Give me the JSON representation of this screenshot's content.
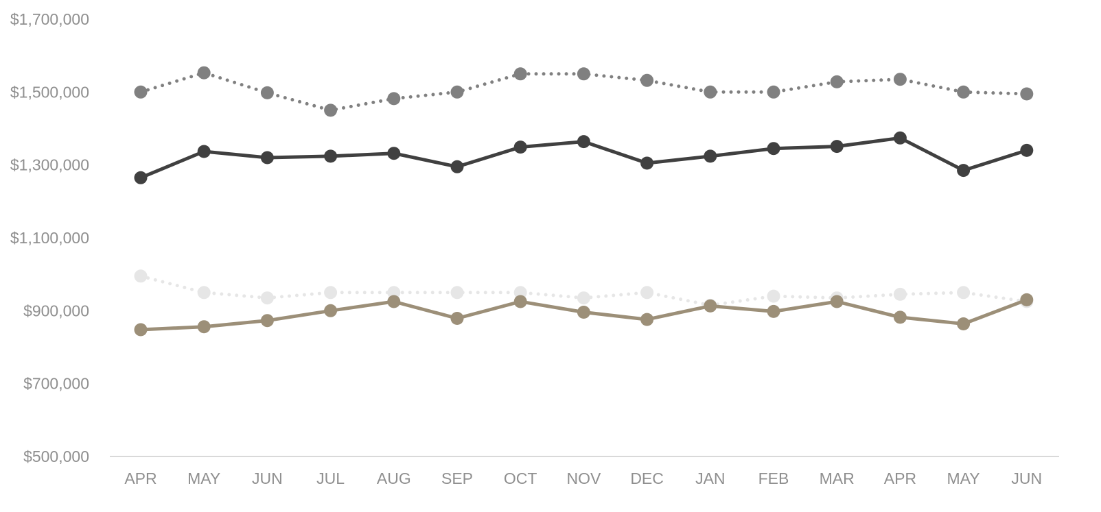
{
  "chart_data": {
    "type": "line",
    "categories": [
      "APR",
      "MAY",
      "JUN",
      "JUL",
      "AUG",
      "SEP",
      "OCT",
      "NOV",
      "DEC",
      "JAN",
      "FEB",
      "MAR",
      "APR",
      "MAY",
      "JUN"
    ],
    "ylim": [
      500000,
      1700000
    ],
    "yticks": [
      500000,
      700000,
      900000,
      1100000,
      1300000,
      1500000,
      1700000
    ],
    "ytick_labels": [
      "$500,000",
      "$700,000",
      "$900,000",
      "$1,100,000",
      "$1,300,000",
      "$1,500,000",
      "$1,700,000"
    ],
    "grid": false,
    "legend": "none",
    "series": [
      {
        "values": [
          1500000,
          1553000,
          1498000,
          1450000,
          1482000,
          1500000,
          1550000,
          1550000,
          1532000,
          1500000,
          1500000,
          1528000,
          1535000,
          1500000,
          1495000
        ],
        "color": "#808080",
        "line_style": "dotted"
      },
      {
        "values": [
          1265000,
          1337000,
          1320000,
          1324000,
          1332000,
          1295000,
          1349000,
          1364000,
          1305000,
          1324000,
          1345000,
          1351000,
          1374000,
          1285000,
          1340000
        ],
        "color": "#404040",
        "line_style": "solid"
      },
      {
        "values": [
          995000,
          950000,
          935000,
          950000,
          950000,
          950000,
          950000,
          935000,
          950000,
          915000,
          940000,
          935000,
          945000,
          950000,
          925000
        ],
        "color": "#e6e6e6",
        "line_style": "dotted"
      },
      {
        "values": [
          848000,
          856000,
          873000,
          900000,
          925000,
          879000,
          925000,
          896000,
          876000,
          913000,
          898000,
          925000,
          882000,
          864000,
          930000
        ],
        "color": "#9c8f78",
        "line_style": "solid"
      }
    ]
  }
}
